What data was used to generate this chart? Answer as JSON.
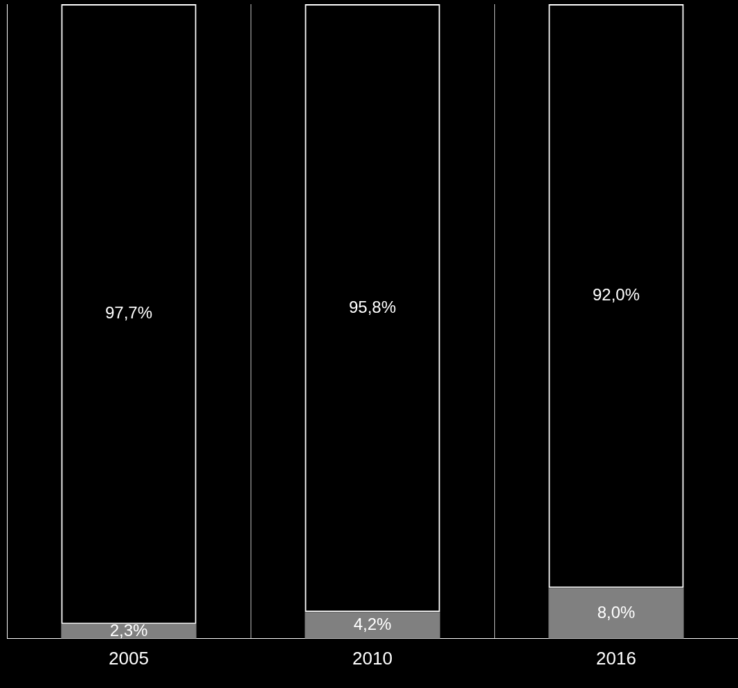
{
  "chart_data": {
    "type": "bar",
    "stacked": true,
    "categories": [
      "2005",
      "2010",
      "2016"
    ],
    "series": [
      {
        "color": "#808080",
        "values": [
          2.3,
          4.2,
          8.0
        ],
        "value_labels": [
          "2,3%",
          "4,2%",
          "8,0%"
        ]
      },
      {
        "color": "#ffffff",
        "values": [
          97.7,
          95.8,
          92.0
        ],
        "value_labels": [
          "97,7%",
          "95,8%",
          "92,0%"
        ]
      }
    ],
    "ylim": [
      0,
      100
    ],
    "tick_labels": "x",
    "grid": "x",
    "legend": false
  }
}
